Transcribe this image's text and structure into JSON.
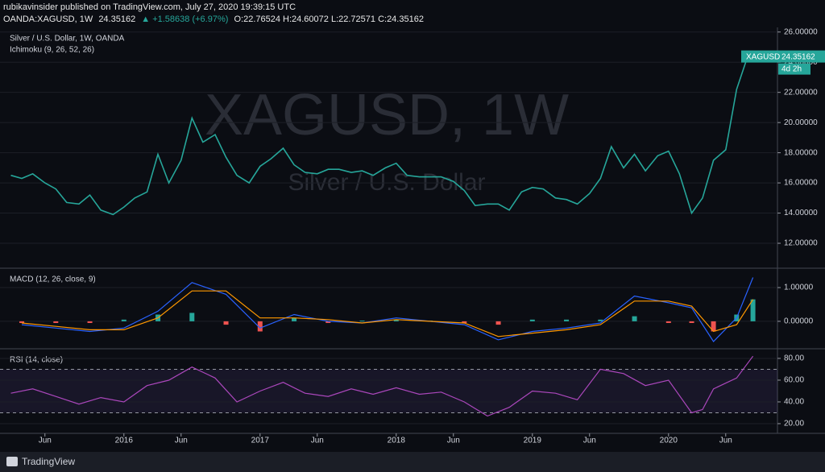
{
  "header": {
    "published": "rubikavinsider published on TradingView.com, July 27, 2020 19:39:15 UTC",
    "symbol": "OANDA:XAGUSD, 1W",
    "price": "24.35162",
    "change": "▲ +1.58638 (+6.97%)",
    "ohlc": "O:22.76524 H:24.60072 L:22.72571 C:24.35162"
  },
  "chart_data": [
    {
      "type": "line",
      "title": "Silver / U.S. Dollar, 1W, OANDA",
      "subtitle": "Ichimoku (9, 26, 52, 26)",
      "watermark": "XAGUSD, 1W",
      "watermark_sub": "Silver / U.S. Dollar",
      "symbol": "XAGUSD",
      "countdown": "4d 2h",
      "xlim": [
        2015.09,
        2020.8
      ],
      "ylim": [
        10.4,
        26.2
      ],
      "yticks": [
        {
          "value": 12,
          "label": "12.00000"
        },
        {
          "value": 14,
          "label": "14.00000"
        },
        {
          "value": 16,
          "label": "16.00000"
        },
        {
          "value": 18,
          "label": "18.00000"
        },
        {
          "value": 20,
          "label": "20.00000"
        },
        {
          "value": 22,
          "label": "22.00000"
        },
        {
          "value": 24,
          "label": "24.00000"
        },
        {
          "value": 26,
          "label": "26.00000"
        }
      ],
      "x": [
        2015.17,
        2015.25,
        2015.33,
        2015.42,
        2015.5,
        2015.58,
        2015.67,
        2015.75,
        2015.83,
        2015.92,
        2016.0,
        2016.08,
        2016.17,
        2016.25,
        2016.33,
        2016.42,
        2016.5,
        2016.58,
        2016.67,
        2016.75,
        2016.83,
        2016.92,
        2017.0,
        2017.08,
        2017.17,
        2017.25,
        2017.33,
        2017.42,
        2017.5,
        2017.58,
        2017.67,
        2017.75,
        2017.83,
        2017.92,
        2018.0,
        2018.08,
        2018.17,
        2018.25,
        2018.33,
        2018.42,
        2018.5,
        2018.58,
        2018.67,
        2018.75,
        2018.83,
        2018.92,
        2019.0,
        2019.08,
        2019.17,
        2019.25,
        2019.33,
        2019.42,
        2019.5,
        2019.58,
        2019.67,
        2019.75,
        2019.83,
        2019.92,
        2020.0,
        2020.08,
        2020.17,
        2020.25,
        2020.33,
        2020.42,
        2020.5,
        2020.58
      ],
      "series": [
        {
          "color": "#26a69a",
          "values": [
            16.5,
            16.3,
            16.6,
            16.0,
            15.6,
            14.7,
            14.6,
            15.2,
            14.2,
            13.9,
            14.4,
            15.0,
            15.4,
            17.9,
            16.0,
            17.5,
            20.3,
            18.7,
            19.2,
            17.7,
            16.5,
            16.0,
            17.1,
            17.6,
            18.3,
            17.2,
            16.7,
            16.6,
            16.9,
            16.9,
            16.7,
            16.8,
            16.5,
            17.0,
            17.3,
            16.5,
            16.4,
            16.4,
            16.4,
            16.1,
            15.5,
            14.5,
            14.6,
            14.6,
            14.2,
            15.4,
            15.7,
            15.6,
            15.0,
            14.9,
            14.6,
            15.3,
            16.3,
            18.4,
            17.0,
            17.9,
            16.8,
            17.8,
            18.1,
            16.6,
            14.0,
            15.0,
            17.5,
            18.2,
            22.2,
            24.35162
          ]
        }
      ]
    },
    {
      "type": "line",
      "title": "MACD (12, 26, close, 9)",
      "xlim": [
        2015.09,
        2020.8
      ],
      "ylim": [
        -0.79,
        1.55
      ],
      "yticks": [
        {
          "value": 0,
          "label": "0.00000"
        },
        {
          "value": 1,
          "label": "1.00000"
        }
      ],
      "x": [
        2015.25,
        2015.5,
        2015.75,
        2016.0,
        2016.25,
        2016.5,
        2016.75,
        2017.0,
        2017.25,
        2017.5,
        2017.75,
        2018.0,
        2018.25,
        2018.5,
        2018.75,
        2019.0,
        2019.25,
        2019.5,
        2019.75,
        2020.0,
        2020.17,
        2020.33,
        2020.5,
        2020.62
      ],
      "series": [
        {
          "kind": "histogram",
          "color": "#26a69a",
          "negative_color": "#ef5350",
          "values": [
            -0.05,
            -0.05,
            -0.05,
            0.05,
            0.2,
            0.25,
            -0.1,
            -0.3,
            0.1,
            -0.05,
            0.02,
            0.05,
            0.02,
            -0.05,
            -0.1,
            0.05,
            0.05,
            0.05,
            0.15,
            -0.05,
            -0.05,
            -0.3,
            0.2,
            0.65
          ]
        },
        {
          "kind": "line",
          "color": "#2962ff",
          "values": [
            -0.1,
            -0.2,
            -0.3,
            -0.2,
            0.3,
            1.15,
            0.8,
            -0.2,
            0.2,
            0.0,
            -0.05,
            0.1,
            0.0,
            -0.1,
            -0.55,
            -0.3,
            -0.2,
            -0.05,
            0.75,
            0.55,
            0.4,
            -0.6,
            0.1,
            1.3
          ]
        },
        {
          "kind": "line",
          "color": "#ff9800",
          "values": [
            -0.05,
            -0.15,
            -0.25,
            -0.25,
            0.1,
            0.9,
            0.9,
            0.1,
            0.1,
            0.05,
            -0.05,
            0.05,
            0.0,
            -0.05,
            -0.45,
            -0.35,
            -0.25,
            -0.1,
            0.6,
            0.6,
            0.45,
            -0.3,
            -0.1,
            0.65
          ]
        }
      ]
    },
    {
      "type": "line",
      "title": "RSI (14, close)",
      "xlim": [
        2015.09,
        2020.8
      ],
      "ylim": [
        11.1,
        88.1
      ],
      "yticks": [
        {
          "value": 20,
          "label": "20.00"
        },
        {
          "value": 40,
          "label": "40.00"
        },
        {
          "value": 60,
          "label": "60.00"
        },
        {
          "value": 80,
          "label": "80.00"
        }
      ],
      "band": [
        30,
        70
      ],
      "band_color": "#7e57c2",
      "xticks": [
        {
          "value": 2015.42,
          "label": "Jun"
        },
        {
          "value": 2016,
          "label": "2016"
        },
        {
          "value": 2016.42,
          "label": "Jun"
        },
        {
          "value": 2017,
          "label": "2017"
        },
        {
          "value": 2017.42,
          "label": "Jun"
        },
        {
          "value": 2018,
          "label": "2018"
        },
        {
          "value": 2018.42,
          "label": "Jun"
        },
        {
          "value": 2019,
          "label": "2019"
        },
        {
          "value": 2019.42,
          "label": "Jun"
        },
        {
          "value": 2020,
          "label": "2020"
        },
        {
          "value": 2020.42,
          "label": "Jun"
        }
      ],
      "x": [
        2015.17,
        2015.33,
        2015.5,
        2015.67,
        2015.83,
        2016.0,
        2016.17,
        2016.33,
        2016.5,
        2016.67,
        2016.83,
        2017.0,
        2017.17,
        2017.33,
        2017.5,
        2017.67,
        2017.83,
        2018.0,
        2018.17,
        2018.33,
        2018.5,
        2018.67,
        2018.83,
        2019.0,
        2019.17,
        2019.33,
        2019.5,
        2019.67,
        2019.83,
        2020.0,
        2020.17,
        2020.25,
        2020.33,
        2020.5,
        2020.62
      ],
      "series": [
        {
          "color": "#ab47bc",
          "values": [
            48,
            52,
            45,
            38,
            44,
            40,
            55,
            60,
            72,
            62,
            40,
            50,
            58,
            48,
            45,
            52,
            47,
            53,
            47,
            49,
            40,
            27,
            35,
            50,
            48,
            42,
            70,
            66,
            55,
            60,
            30,
            33,
            52,
            62,
            82
          ]
        }
      ]
    }
  ],
  "footer": {
    "brand": "TradingView"
  }
}
